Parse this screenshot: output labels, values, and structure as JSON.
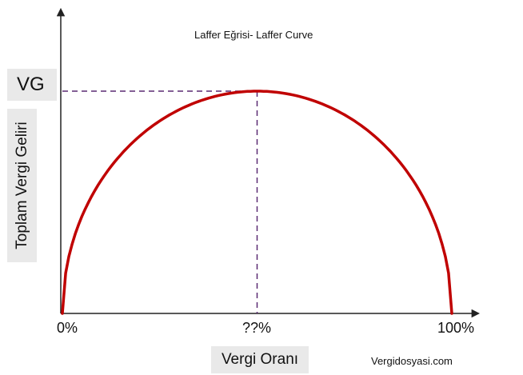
{
  "chart_data": {
    "type": "line",
    "title": "Laffer Eğrisi- Laffer Curve",
    "xlabel": "Vergi Oranı",
    "ylabel": "Toplam Vergi Geliri",
    "x_ticks": [
      "0%",
      "??%",
      "100%"
    ],
    "y_ticks": [
      "VG"
    ],
    "series": [
      {
        "x": [
          0,
          10,
          20,
          30,
          40,
          50,
          60,
          70,
          80,
          90,
          100
        ],
        "y": [
          0,
          0.44,
          0.73,
          0.89,
          0.98,
          1.0,
          0.98,
          0.89,
          0.73,
          0.44,
          0
        ]
      }
    ],
    "peak": {
      "x": 50,
      "y": 1.0
    },
    "xlim": [
      0,
      100
    ],
    "ylim": [
      0,
      1
    ],
    "grid": false,
    "colors": {
      "curve": "#c00000",
      "guide": "#5a2a72",
      "axis": "#222222",
      "label_bg": "#e9e9e9"
    }
  },
  "watermark": "Vergidosyasi.com"
}
